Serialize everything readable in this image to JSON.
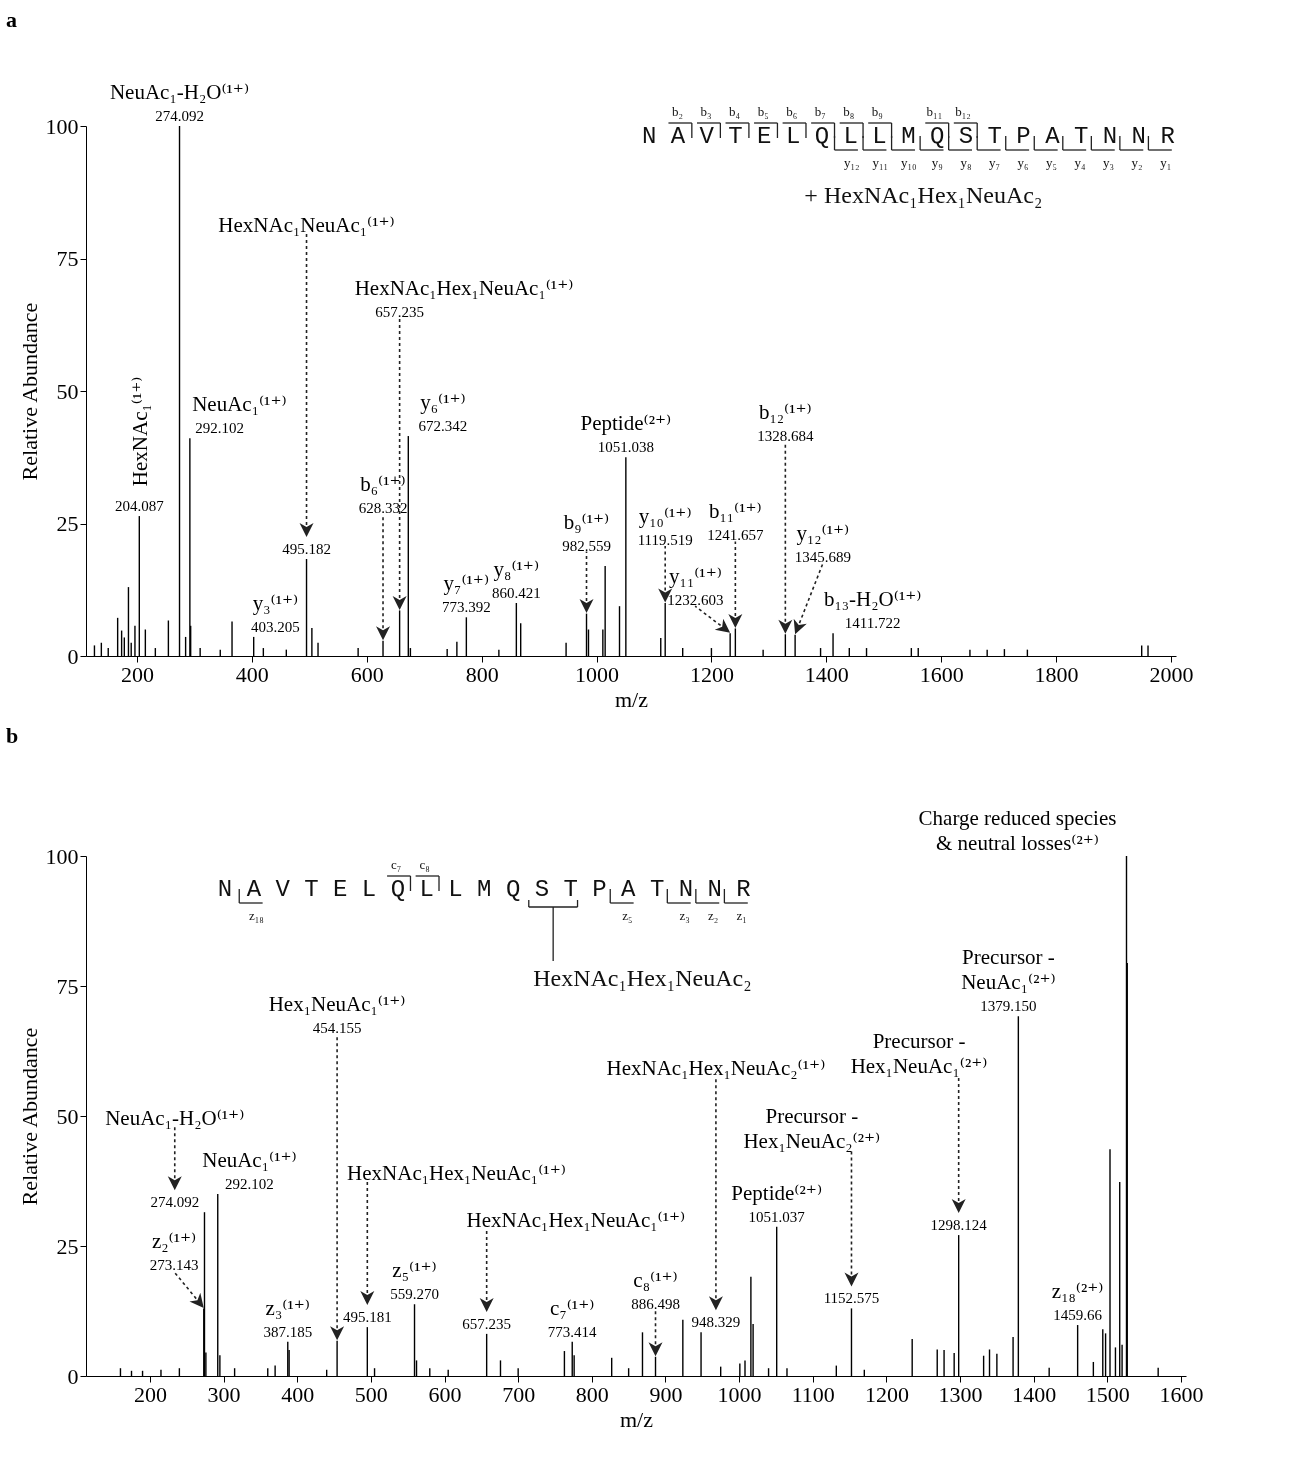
{
  "chart_data": [
    {
      "type": "bar",
      "title": "a",
      "xlabel": "m/z",
      "ylabel": "Relative Abundance",
      "color": "#000000",
      "x": [
        126,
        138,
        150,
        166.4,
        173.3,
        178,
        185.2,
        190,
        196.5,
        204.087,
        214.6,
        232,
        254.7,
        274.092,
        284.7,
        292.102,
        293.5,
        310,
        345,
        365.5,
        403.205,
        420,
        460,
        495.182,
        504.5,
        515.2,
        585,
        628.332,
        657.235,
        672.342,
        676,
        740,
        756.9,
        773.392,
        830,
        860.421,
        868,
        947,
        982.559,
        986,
        1011,
        1015,
        1040,
        1051.038,
        1111.8,
        1119.519,
        1150,
        1200,
        1232.603,
        1241.657,
        1290,
        1328.684,
        1345.689,
        1390,
        1411.722,
        1440,
        1470,
        1548,
        1560,
        1650,
        1680,
        1710,
        1750,
        1949,
        1960
      ],
      "values": [
        2,
        2.5,
        1.5,
        7.2,
        4.8,
        3.5,
        13,
        2.5,
        5.7,
        26.4,
        5,
        1.5,
        6.7,
        100,
        3.6,
        41.1,
        5.7,
        1.5,
        1.2,
        6.5,
        3.6,
        1.5,
        1.2,
        18.3,
        5.3,
        2.5,
        1.5,
        2.9,
        8.6,
        41.5,
        1.5,
        1.3,
        2.7,
        7.3,
        1.2,
        10,
        6.2,
        2.5,
        8,
        5,
        5,
        17,
        9.4,
        37.5,
        3.4,
        10,
        1.5,
        1.5,
        4.3,
        5.2,
        1.2,
        4.1,
        4,
        1.5,
        4.3,
        1.5,
        1.5,
        1.5,
        1.5,
        1.2,
        1.2,
        1.3,
        1.2,
        2,
        2
      ],
      "xlim": [
        120,
        2000
      ],
      "xticks": [
        200,
        400,
        600,
        800,
        1000,
        1200,
        1400,
        1600,
        1800,
        2000
      ],
      "ylim": [
        0,
        100
      ],
      "yticks": [
        0,
        25,
        50,
        75,
        100
      ],
      "annotations": [
        "N A V T E L Q L L M Q S T P A T N N R",
        "b₂",
        "b₃",
        "b₄",
        "b₅",
        "b₆",
        "b₇",
        "b₈",
        "b₉",
        "b₁₁",
        "b₁₂",
        "y₁₂",
        "y₁₁",
        "y₁₀",
        "y₉",
        "y₈",
        "y₇",
        "y₆",
        "y₅",
        "y₄",
        "y₃",
        "y₂",
        "y₁",
        "+ HexNAc₁Hex₁NeuAc₂",
        {
          "text": "HexNAc₁⁽¹⁺⁾",
          "x": 204.087,
          "y": 26.4
        },
        {
          "text": "204.087",
          "x": 204.087,
          "y": 26.4
        },
        {
          "text": "NeuAc₁-H₂O⁽¹⁺⁾",
          "x": 274.092,
          "y": 100
        },
        {
          "text": "274.092",
          "x": 274.092,
          "y": 100
        },
        {
          "text": "NeuAc₁⁽¹⁺⁾",
          "x": 292.102,
          "y": 41.1
        },
        {
          "text": "292.102",
          "x": 292.102,
          "y": 41.1
        },
        {
          "text": "y₃⁽¹⁺⁾",
          "x": 403.205,
          "y": 3.6
        },
        {
          "text": "403.205",
          "x": 403.205,
          "y": 3.6
        },
        "HexNAc₁NeuAc₁⁽¹⁺⁾",
        {
          "text": "495.182",
          "x": 495.182,
          "y": 18.3
        },
        "b₆⁽¹⁺⁾",
        "628.332",
        "HexNAc₁Hex₁NeuAc₁⁽¹⁺⁾",
        "657.235",
        {
          "text": "y₆⁽¹⁺⁾",
          "x": 672.342,
          "y": 41.5
        },
        {
          "text": "672.342",
          "x": 672.342,
          "y": 41.5
        },
        {
          "text": "y₇⁽¹⁺⁾",
          "x": 773.392,
          "y": 7.3
        },
        {
          "text": "773.392",
          "x": 773.392,
          "y": 7.3
        },
        {
          "text": "y₈⁽¹⁺⁾",
          "x": 860.421,
          "y": 10
        },
        {
          "text": "860.421",
          "x": 860.421,
          "y": 10
        },
        "b₉⁽¹⁺⁾",
        "982.559",
        {
          "text": "Peptide⁽²⁺⁾",
          "x": 1051.038,
          "y": 37.5
        },
        {
          "text": "1051.038",
          "x": 1051.038,
          "y": 37.5
        },
        "y₁₀⁽¹⁺⁾",
        "1119.519",
        {
          "text": "y₁₁⁽¹⁺⁾",
          "x": 1232.603,
          "y": 4.3
        },
        {
          "text": "1232.603",
          "x": 1232.603,
          "y": 4.3
        },
        "b₁₁⁽¹⁺⁾",
        "1241.657",
        "b₁₂⁽¹⁺⁾",
        "1328.684",
        "y₁₂⁽¹⁺⁾",
        "1345.689",
        {
          "text": "b₁₃-H₂O⁽¹⁺⁾",
          "x": 1411.722,
          "y": 4.3
        },
        {
          "text": "1411.722",
          "x": 1411.722,
          "y": 4.3
        }
      ]
    },
    {
      "type": "bar",
      "title": "b",
      "xlabel": "m/z",
      "ylabel": "Relative Abundance",
      "color": "#000000",
      "x": [
        160,
        175,
        190,
        215,
        240,
        273.143,
        274.092,
        276,
        292.102,
        295,
        315,
        360,
        370,
        387.185,
        389,
        440,
        454.155,
        495.181,
        505,
        559.27,
        562,
        580,
        605,
        657.235,
        676,
        700,
        762.8,
        773.414,
        776,
        827,
        850,
        868.8,
        886.498,
        923.6,
        948.329,
        975,
        1001,
        1008,
        1016,
        1019,
        1040,
        1051.037,
        1065,
        1132,
        1152.575,
        1170,
        1235,
        1269,
        1278.3,
        1292,
        1298.124,
        1332,
        1340,
        1350,
        1372,
        1379.15,
        1421,
        1459.66,
        1481,
        1493.8,
        1497.6,
        1503.6,
        1511,
        1516.8,
        1520,
        1526,
        1527,
        1569
      ],
      "values": [
        1.5,
        1,
        1,
        1.2,
        1.5,
        13,
        31.5,
        4.5,
        35,
        4,
        1.5,
        1.5,
        2,
        6.6,
        5,
        1.2,
        6.8,
        9.4,
        1.5,
        13.8,
        3,
        1.5,
        1.2,
        8.1,
        3,
        1.5,
        4.8,
        6.6,
        4,
        3.5,
        1.5,
        8.4,
        3.7,
        10.8,
        8.4,
        1.8,
        2.4,
        3,
        19.1,
        10,
        1.5,
        28.7,
        1.5,
        2,
        13,
        1.2,
        7.1,
        5.1,
        5,
        4.4,
        27.1,
        3.9,
        5.1,
        4.3,
        7.5,
        69.2,
        1.6,
        9.8,
        2.7,
        9,
        8.2,
        43.6,
        5.5,
        37.3,
        6,
        100,
        79.4,
        1.6
      ],
      "xlim": [
        120,
        1600
      ],
      "xticks": [
        200,
        300,
        400,
        500,
        600,
        700,
        800,
        900,
        1000,
        1100,
        1200,
        1300,
        1400,
        1500,
        1600
      ],
      "ylim": [
        0,
        100
      ],
      "yticks": [
        0,
        25,
        50,
        75,
        100
      ],
      "annotations": [
        "N A V T E L Q L L M Q S T P A T N N R",
        "c₇",
        "c₈",
        "z₁₈",
        "z₅",
        "z₃",
        "z₂",
        "z₁",
        "HexNAc₁Hex₁NeuAc₂",
        {
          "text": "z₂⁽¹⁺⁾",
          "x": 273.143,
          "y": 13
        },
        {
          "text": "273.143",
          "x": 273.143,
          "y": 13
        },
        "NeuAc₁-H₂O⁽¹⁺⁾",
        {
          "text": "274.092",
          "x": 274.092,
          "y": 31.5
        },
        {
          "text": "NeuAc₁⁽¹⁺⁾",
          "x": 292.102,
          "y": 35
        },
        {
          "text": "292.102",
          "x": 292.102,
          "y": 35
        },
        {
          "text": "z₃⁽¹⁺⁾",
          "x": 387.185,
          "y": 6.6
        },
        {
          "text": "387.185",
          "x": 387.185,
          "y": 6.6
        },
        "Hex₁NeuAc₁⁽¹⁺⁾",
        "454.155",
        "HexNAc₁Hex₁NeuAc₁⁽¹⁺⁾",
        {
          "text": "495.181",
          "x": 495.181,
          "y": 9.4
        },
        {
          "text": "z₅⁽¹⁺⁾",
          "x": 559.27,
          "y": 13.8
        },
        {
          "text": "559.270",
          "x": 559.27,
          "y": 13.8
        },
        "HexNAc₁Hex₁NeuAc₁⁽¹⁺⁾",
        {
          "text": "657.235",
          "x": 657.235,
          "y": 8.1
        },
        {
          "text": "c₇⁽¹⁺⁾",
          "x": 773.414,
          "y": 6.6
        },
        {
          "text": "773.414",
          "x": 773.414,
          "y": 6.6
        },
        "c₈⁽¹⁺⁾",
        "886.498",
        "HexNAc₁Hex₁NeuAc₂⁽¹⁺⁾",
        {
          "text": "948.329",
          "x": 948.329,
          "y": 8.4
        },
        {
          "text": "Peptide⁽²⁺⁾",
          "x": 1051.037,
          "y": 28.7
        },
        {
          "text": "1051.037",
          "x": 1051.037,
          "y": 28.7
        },
        "Precursor -\nHex₁NeuAc₂⁽²⁺⁾",
        {
          "text": "1152.575",
          "x": 1152.575,
          "y": 13
        },
        "Precursor -\nHex₁NeuAc₁⁽²⁺⁾",
        {
          "text": "1298.124",
          "x": 1298.124,
          "y": 27.1
        },
        {
          "text": "Precursor -\nNeuAc₁⁽²⁺⁾",
          "x": 1379.15,
          "y": 69.2
        },
        {
          "text": "1379.150",
          "x": 1379.15,
          "y": 69.2
        },
        {
          "text": "z₁₈⁽²⁺⁾",
          "x": 1459.66,
          "y": 9.8
        },
        {
          "text": "1459.66",
          "x": 1459.66,
          "y": 9.8
        },
        {
          "text": "Charge reduced species\n& neutral losses⁽²⁺⁾",
          "x": 1526,
          "y": 100
        }
      ]
    }
  ]
}
